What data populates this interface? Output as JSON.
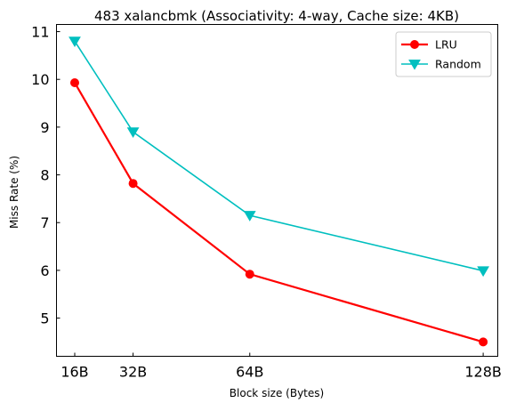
{
  "chart_data": {
    "type": "line",
    "title": "483 xalancbmk (Associativity: 4-way, Cache size: 4KB)",
    "xlabel": "Block size (Bytes)",
    "ylabel": "Miss Rate (%)",
    "x": [
      16,
      32,
      64,
      128
    ],
    "x_tick_labels": [
      "16B",
      "32B",
      "64B",
      "128B"
    ],
    "xlim": [
      11,
      132
    ],
    "ylim": [
      4.2,
      11.15
    ],
    "y_ticks": [
      5,
      6,
      7,
      8,
      9,
      10,
      11
    ],
    "y_tick_labels": [
      "5",
      "6",
      "7",
      "8",
      "9",
      "10",
      "11"
    ],
    "grid": false,
    "legend_position": "top-right",
    "series": [
      {
        "name": "LRU",
        "values": [
          9.93,
          7.82,
          5.92,
          4.5
        ],
        "color": "#ff0000",
        "marker": "circle"
      },
      {
        "name": "Random",
        "values": [
          10.8,
          8.9,
          7.15,
          5.99
        ],
        "color": "#00bfbf",
        "marker": "triangle-down"
      }
    ]
  }
}
